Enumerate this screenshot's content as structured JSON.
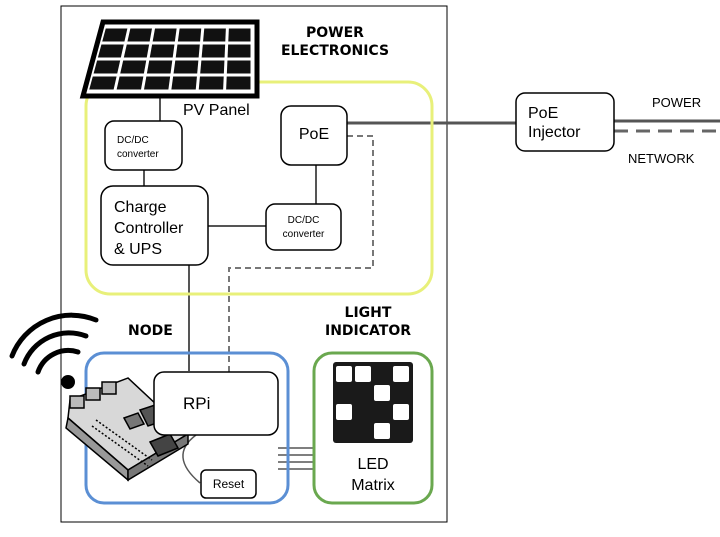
{
  "groups": {
    "power_electronics": {
      "title_line1": "POWER",
      "title_line2": "ELECTRONICS",
      "outline_color": "#e8f07a"
    },
    "node": {
      "title": "NODE",
      "outline_color": "#5b8fd4"
    },
    "light_indicator": {
      "title_line1": "LIGHT",
      "title_line2": "INDICATOR",
      "outline_color": "#6aa84f"
    }
  },
  "components": {
    "pv_panel": "PV Panel",
    "dcdc_top_line1": "DC/DC",
    "dcdc_top_line2": "converter",
    "poe": "PoE",
    "charge_controller_line1": "Charge",
    "charge_controller_line2": "Controller",
    "charge_controller_line3": "& UPS",
    "dcdc_right_line1": "DC/DC",
    "dcdc_right_line2": "converter",
    "rpi": "RPi",
    "reset": "Reset",
    "led_matrix_line1": "LED",
    "led_matrix_line2": "Matrix",
    "poe_injector_line1": "PoE",
    "poe_injector_line2": "Injector"
  },
  "external": {
    "power_label": "POWER",
    "network_label": "NETWORK"
  },
  "icons": [
    "solar-panel-icon",
    "wifi-icon",
    "raspberry-pi-board-icon",
    "led-matrix-icon"
  ]
}
